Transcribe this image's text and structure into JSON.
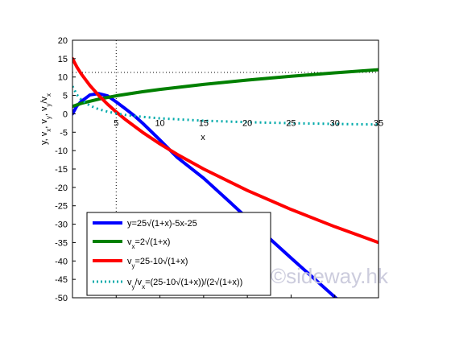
{
  "chart_data": {
    "type": "line",
    "xlabel": "x",
    "ylabel": "y, vx, vy, vy/vx",
    "xlim": [
      0,
      35
    ],
    "ylim": [
      -50,
      20
    ],
    "xticks": [
      5,
      10,
      15,
      20,
      25,
      30,
      35
    ],
    "yticks": [
      20,
      15,
      10,
      5,
      0,
      -5,
      -10,
      -15,
      -20,
      -25,
      -30,
      -35,
      -40,
      -45,
      -50
    ],
    "grid": false,
    "legend_position": "bottom-left",
    "reference_lines": [
      {
        "orientation": "vertical",
        "x": 5
      },
      {
        "orientation": "horizontal",
        "y": 11.24
      }
    ],
    "series": [
      {
        "name": "y=25√(1+x)-5x-25",
        "color": "#0000ff",
        "style": "solid",
        "x": [
          0,
          0.5,
          1,
          2,
          3,
          4,
          5,
          6,
          7,
          8,
          10,
          12,
          15,
          18,
          20,
          25,
          30,
          35
        ],
        "y": [
          0,
          2.12,
          3.36,
          5.14,
          5.5,
          4.9,
          3.24,
          1.46,
          -0.38,
          -2.5,
          -7.1,
          -11.9,
          -17.5,
          -24.0,
          -28.4,
          -39.2,
          -49.8,
          -60.0
        ]
      },
      {
        "name": "vx=2√(1+x)",
        "color": "#008000",
        "style": "solid",
        "x": [
          0,
          1,
          3,
          5,
          8,
          10,
          15,
          20,
          25,
          30,
          35
        ],
        "y": [
          2.0,
          2.83,
          4.0,
          4.9,
          6.0,
          6.63,
          8.0,
          9.17,
          10.2,
          11.14,
          12.0
        ]
      },
      {
        "name": "vy=25-10√(1+x)",
        "color": "#ff0000",
        "style": "solid",
        "x": [
          0,
          0.5,
          1,
          2,
          3,
          4,
          5,
          6,
          8,
          10,
          12,
          15,
          20,
          25,
          30,
          35
        ],
        "y": [
          15,
          12.75,
          10.86,
          7.68,
          5.0,
          2.64,
          0.51,
          -1.46,
          -5.0,
          -8.17,
          -11.06,
          -15.0,
          -20.83,
          -26.0,
          -30.68,
          -35.0
        ]
      },
      {
        "name": "vy/vx=(25-10√(1+x))/(2√(1+x))",
        "color": "#00aaaa",
        "style": "dotted",
        "x": [
          0,
          0.5,
          1,
          2,
          3,
          4,
          5,
          6,
          8,
          10,
          15,
          20,
          25,
          30,
          35
        ],
        "y": [
          7.5,
          5.21,
          3.84,
          2.22,
          1.25,
          0.59,
          0.1,
          -0.28,
          -0.83,
          -1.23,
          -1.88,
          -2.27,
          -2.55,
          -2.75,
          -2.92
        ]
      }
    ]
  },
  "legend": [
    {
      "label": "y=25√(1+x)-5x-25"
    },
    {
      "label": "vx=2√(1+x)"
    },
    {
      "label": "vy=25-10√(1+x)"
    },
    {
      "label": "vy/vx=(25-10√(1+x))/(2√(1+x))"
    }
  ],
  "watermark": "©sideway.hk"
}
